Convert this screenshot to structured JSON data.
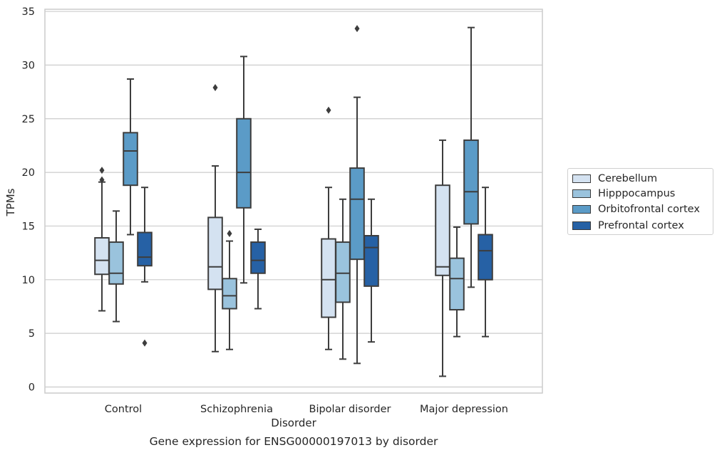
{
  "caption": "Gene expression for ENSG00000197013 by disorder",
  "chart_data": {
    "type": "boxplot",
    "xlabel": "Disorder",
    "ylabel": "TPMs",
    "ylim": [
      -0.5,
      35.2
    ],
    "yticks": [
      0,
      5,
      10,
      15,
      20,
      25,
      30,
      35
    ],
    "grid": "horizontal",
    "legend_position": "right",
    "categories": [
      "Control",
      "Schizophrenia",
      "Bipolar disorder",
      "Major depression"
    ],
    "series": [
      {
        "name": "Cerebellum",
        "color": "#d4e2f1",
        "boxes": [
          {
            "whisker_low": 7.1,
            "q1": 10.5,
            "median": 11.8,
            "q3": 13.9,
            "whisker_high": 19.1,
            "outliers": [
              19.3,
              20.2
            ]
          },
          {
            "whisker_low": 3.3,
            "q1": 9.1,
            "median": 11.2,
            "q3": 15.8,
            "whisker_high": 20.6,
            "outliers": [
              27.9
            ]
          },
          {
            "whisker_low": 3.5,
            "q1": 6.5,
            "median": 10.0,
            "q3": 13.8,
            "whisker_high": 18.6,
            "outliers": [
              25.8
            ]
          },
          {
            "whisker_low": 1.0,
            "q1": 10.4,
            "median": 11.2,
            "q3": 18.8,
            "whisker_high": 23.0,
            "outliers": []
          }
        ]
      },
      {
        "name": "Hipppocampus",
        "color": "#9ac3dd",
        "boxes": [
          {
            "whisker_low": 6.1,
            "q1": 9.6,
            "median": 10.6,
            "q3": 13.5,
            "whisker_high": 16.4,
            "outliers": []
          },
          {
            "whisker_low": 3.5,
            "q1": 7.3,
            "median": 8.5,
            "q3": 10.1,
            "whisker_high": 13.6,
            "outliers": [
              14.3
            ]
          },
          {
            "whisker_low": 2.6,
            "q1": 7.9,
            "median": 10.6,
            "q3": 13.5,
            "whisker_high": 17.5,
            "outliers": []
          },
          {
            "whisker_low": 4.7,
            "q1": 7.2,
            "median": 10.1,
            "q3": 12.0,
            "whisker_high": 14.9,
            "outliers": []
          }
        ]
      },
      {
        "name": "Orbitofrontal cortex",
        "color": "#5b9bc7",
        "boxes": [
          {
            "whisker_low": 14.2,
            "q1": 18.8,
            "median": 22.0,
            "q3": 23.7,
            "whisker_high": 28.7,
            "outliers": []
          },
          {
            "whisker_low": 9.7,
            "q1": 16.7,
            "median": 20.0,
            "q3": 25.0,
            "whisker_high": 30.8,
            "outliers": []
          },
          {
            "whisker_low": 2.2,
            "q1": 11.9,
            "median": 17.5,
            "q3": 20.4,
            "whisker_high": 27.0,
            "outliers": [
              33.4
            ]
          },
          {
            "whisker_low": 9.3,
            "q1": 15.2,
            "median": 18.2,
            "q3": 23.0,
            "whisker_high": 33.5,
            "outliers": []
          }
        ]
      },
      {
        "name": "Prefrontal cortex",
        "color": "#2661a5",
        "boxes": [
          {
            "whisker_low": 9.8,
            "q1": 11.3,
            "median": 12.1,
            "q3": 14.4,
            "whisker_high": 18.6,
            "outliers": [
              4.1
            ]
          },
          {
            "whisker_low": 7.3,
            "q1": 10.6,
            "median": 11.8,
            "q3": 13.5,
            "whisker_high": 14.7,
            "outliers": []
          },
          {
            "whisker_low": 4.2,
            "q1": 9.4,
            "median": 13.0,
            "q3": 14.1,
            "whisker_high": 17.5,
            "outliers": []
          },
          {
            "whisker_low": 4.7,
            "q1": 10.0,
            "median": 12.7,
            "q3": 14.2,
            "whisker_high": 18.6,
            "outliers": []
          }
        ]
      }
    ]
  }
}
